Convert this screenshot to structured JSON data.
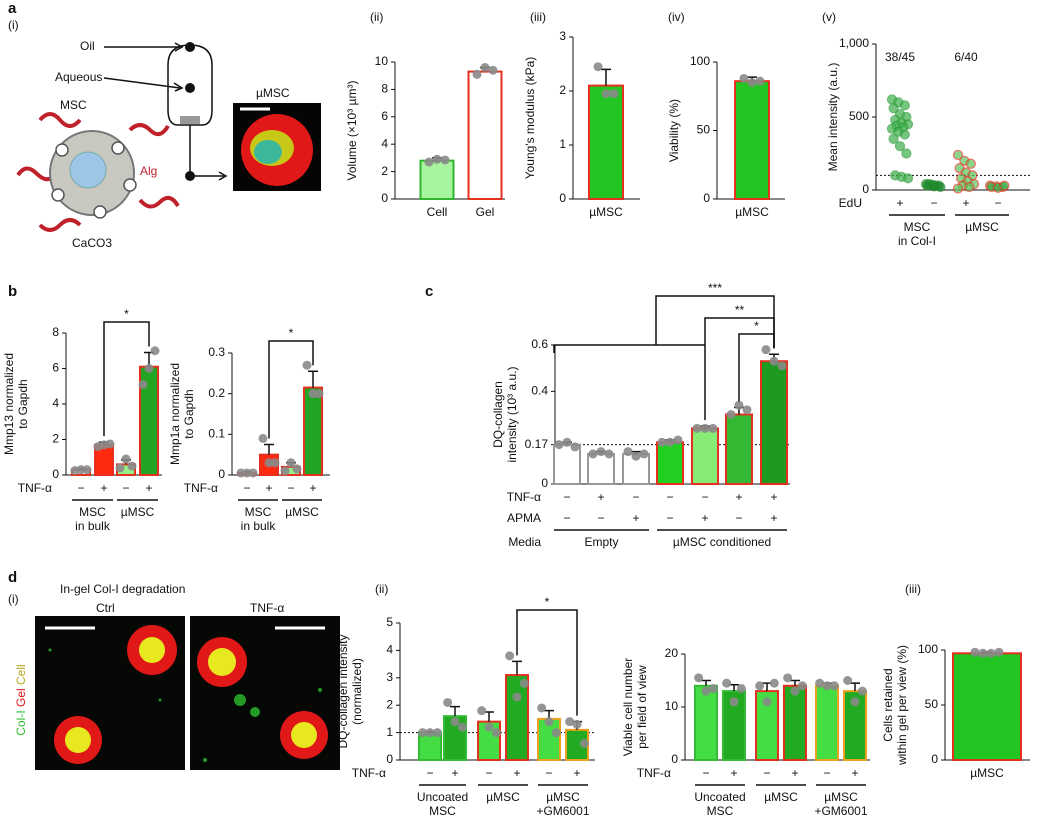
{
  "figure_text": {
    "panel_labels": [
      "a",
      "b",
      "c",
      "d"
    ],
    "a_i": {
      "label": "(i)",
      "oil": "Oil",
      "aqueous": "Aqueous",
      "msc": "MSC",
      "alg": "Alg",
      "caco3": "CaCO3",
      "umsc": "µMSC"
    },
    "d_i": {
      "label": "(i)",
      "title": "In-gel Col-I degradation",
      "ctrl": "Ctrl",
      "tnf": "TNF-α",
      "legend": [
        "Col-I",
        "Gel",
        "Cell"
      ]
    }
  },
  "chart_data": [
    {
      "type": "bar",
      "title": "(ii)",
      "ylabel": [
        "Volume (×10³ µm³)"
      ],
      "ylim": [
        0,
        10
      ],
      "yticks": [
        0,
        2,
        4,
        6,
        8,
        10
      ],
      "categories": [
        "Cell",
        "Gel"
      ],
      "values": [
        2.8,
        9.3
      ],
      "errors": [
        0.2,
        0.3
      ],
      "points": [
        [
          2.7,
          2.9,
          2.85
        ],
        [
          9.1,
          9.6,
          9.4
        ]
      ],
      "colors": [
        "#a8f5a0",
        "#ffffff"
      ],
      "edge_colors": [
        "#2fb52f",
        "#e53020"
      ]
    },
    {
      "type": "bar",
      "title": "(iii)",
      "ylabel": [
        "Young's modulus (kPa)"
      ],
      "ylim": [
        0,
        3
      ],
      "yticks": [
        0,
        1,
        2,
        3
      ],
      "categories": [
        "µMSC"
      ],
      "values": [
        2.1
      ],
      "errors": [
        0.3
      ],
      "points": [
        [
          2.45,
          1.95,
          1.95
        ]
      ],
      "colors": [
        "#22c522"
      ],
      "edge_colors": [
        "#e53020"
      ]
    },
    {
      "type": "bar",
      "title": "(iv)",
      "ylabel": [
        "Viability (%)"
      ],
      "ylim": [
        0,
        100
      ],
      "yticks": [
        0,
        50,
        100
      ],
      "categories": [
        "µMSC"
      ],
      "values": [
        86
      ],
      "errors": [
        3
      ],
      "points": [
        [
          88,
          85,
          86
        ]
      ],
      "colors": [
        "#22c522"
      ],
      "edge_colors": [
        "#e53020"
      ]
    },
    {
      "type": "strip",
      "title": "(v)",
      "ylabel": [
        "Mean intensity (a.u.)"
      ],
      "ylim": [
        0,
        1000
      ],
      "yticks": [
        0,
        500,
        {
          "value": 1000,
          "label": "1,000"
        }
      ],
      "series": [
        {
          "color": "#3cb04a",
          "edge_color": "#2e9a3a",
          "values": [
            620,
            600,
            580,
            560,
            520,
            500,
            480,
            460,
            450,
            440,
            430,
            420,
            400,
            380,
            350,
            300,
            250,
            100,
            90,
            80
          ]
        },
        {
          "color": "#1f8a2c",
          "edge_color": "#1f8a2c",
          "values": [
            40,
            35,
            30,
            30,
            25,
            20,
            40,
            30
          ]
        },
        {
          "color": "#5cc45c",
          "edge_color": "#e53020",
          "values": [
            240,
            200,
            180,
            150,
            120,
            100,
            80,
            60,
            40,
            30,
            20,
            10
          ]
        },
        {
          "color": "#3cb04a",
          "edge_color": "#e53020",
          "values": [
            30,
            25,
            20,
            20,
            15,
            30
          ]
        }
      ],
      "rows": [
        {
          "name": "EdU",
          "labels": [
            "+",
            "−",
            "+",
            "−"
          ]
        }
      ],
      "groups": [
        {
          "label": [
            "MSC",
            "in Col-I"
          ]
        },
        {
          "label": [
            "µMSC"
          ]
        }
      ],
      "annotations": [
        "38/45",
        "6/40"
      ],
      "reference_line": 100
    },
    {
      "type": "bar",
      "ylabel": [
        "Mmp13 normalized",
        "to Gapdh"
      ],
      "ylim": [
        0,
        8
      ],
      "yticks": [
        0,
        2,
        4,
        6,
        8
      ],
      "values": [
        0.3,
        1.7,
        0.6,
        6.1
      ],
      "errors": [
        0.05,
        0.15,
        0.25,
        0.8
      ],
      "points": [
        [
          0.25,
          0.3,
          0.3
        ],
        [
          1.6,
          1.7,
          1.75
        ],
        [
          0.4,
          0.9,
          0.5
        ],
        [
          5.1,
          6.0,
          7.0
        ]
      ],
      "colors": [
        "#ffffff",
        "#ff2a10",
        "#98ee88",
        "#22a522"
      ],
      "edge_colors": [
        "#e53020",
        "#e53020",
        "#e53020",
        "#e53020"
      ],
      "rows": [
        {
          "name": "TNF-α",
          "labels": [
            "−",
            "+",
            "−",
            "+"
          ]
        }
      ],
      "groups": [
        {
          "label": [
            "MSC",
            "in bulk"
          ]
        },
        {
          "label": [
            "µMSC"
          ]
        }
      ],
      "significance": [
        "*"
      ]
    },
    {
      "type": "bar",
      "ylabel": [
        "Mmp1a normalized",
        "to Gapdh"
      ],
      "ylim": [
        0,
        0.3
      ],
      "yticks": [
        0,
        0.1,
        0.2,
        0.3
      ],
      "values": [
        0.005,
        0.05,
        0.02,
        0.215
      ],
      "errors": [
        0.003,
        0.025,
        0.01,
        0.04
      ],
      "points": [
        [
          0.005,
          0.005,
          0.005
        ],
        [
          0.09,
          0.03,
          0.03
        ],
        [
          0.01,
          0.03,
          0.015
        ],
        [
          0.27,
          0.2,
          0.2
        ]
      ],
      "colors": [
        "#ffffff",
        "#ff2a10",
        "#98ee88",
        "#22a522"
      ],
      "edge_colors": [
        "#e53020",
        "#e53020",
        "#e53020",
        "#e53020"
      ],
      "rows": [
        {
          "name": "TNF-α",
          "labels": [
            "−",
            "+",
            "−",
            "+"
          ]
        }
      ],
      "groups": [
        {
          "label": [
            "MSC",
            "in bulk"
          ]
        },
        {
          "label": [
            "µMSC"
          ]
        }
      ],
      "significance": [
        "*"
      ]
    },
    {
      "type": "bar",
      "ylabel": [
        "DQ-collagen",
        "intensity (10³ a.u.)"
      ],
      "ylim": [
        0,
        0.6
      ],
      "yticks": [
        0,
        0.17,
        0.4,
        0.6
      ],
      "values": [
        0.17,
        0.13,
        0.13,
        0.18,
        0.24,
        0.3,
        0.53
      ],
      "errors": [
        0.01,
        0.01,
        0.01,
        0.01,
        0.01,
        0.03,
        0.03
      ],
      "points": [
        [
          0.17,
          0.18,
          0.16
        ],
        [
          0.13,
          0.14,
          0.13
        ],
        [
          0.14,
          0.12,
          0.13
        ],
        [
          0.18,
          0.18,
          0.19
        ],
        [
          0.24,
          0.24,
          0.24
        ],
        [
          0.3,
          0.34,
          0.32
        ],
        [
          0.58,
          0.53,
          0.51
        ]
      ],
      "colors": [
        "#ffffff",
        "#ffffff",
        "#ffffff",
        "#22d022",
        "#86ec76",
        "#33b833",
        "#1e9a1e"
      ],
      "edge_colors": [
        "#999999",
        "#999999",
        "#999999",
        "#e53020",
        "#e53020",
        "#e53020",
        "#e53020"
      ],
      "rows": [
        {
          "name": "TNF-α",
          "labels": [
            "−",
            "+",
            "−",
            "−",
            "−",
            "+",
            "+"
          ]
        },
        {
          "name": "APMA",
          "labels": [
            "−",
            "−",
            "+",
            "−",
            "+",
            "−",
            "+"
          ]
        }
      ],
      "group_row": "Media",
      "groups": [
        {
          "label": [
            "Empty"
          ]
        },
        {
          "label": [
            "µMSC conditioned"
          ]
        }
      ],
      "significance": [
        "***",
        "**",
        "*"
      ],
      "reference_line": 0.17
    },
    {
      "type": "bar",
      "title": "(ii)",
      "ylabel": [
        "DQ-collagen intensity",
        "(normalized)"
      ],
      "ylim": [
        0,
        5
      ],
      "yticks": [
        0,
        1,
        2,
        3,
        4,
        5
      ],
      "values": [
        1.0,
        1.6,
        1.4,
        3.1,
        1.5,
        1.1
      ],
      "errors": [
        0.02,
        0.35,
        0.35,
        0.5,
        0.3,
        0.3
      ],
      "points": [
        [
          1,
          1,
          1
        ],
        [
          2.1,
          1.4,
          1.2
        ],
        [
          1.8,
          1.2,
          1.0
        ],
        [
          3.8,
          2.3,
          2.8
        ],
        [
          1.9,
          1.4,
          1.0
        ],
        [
          1.4,
          1.3,
          0.6
        ]
      ],
      "colors": [
        "#44dd44",
        "#22aa22",
        "#44dd44",
        "#22aa22",
        "#44dd44",
        "#22aa22"
      ],
      "edge_colors": [
        "#33bb33",
        "#33bb33",
        "#e53020",
        "#e53020",
        "#f0a020",
        "#f0a020"
      ],
      "reference_line": 1,
      "rows": [
        {
          "name": "TNF-α",
          "labels": [
            "−",
            "+",
            "−",
            "+",
            "−",
            "+"
          ]
        }
      ],
      "groups": [
        {
          "label": [
            "Uncoated",
            "MSC"
          ]
        },
        {
          "label": [
            "µMSC"
          ]
        },
        {
          "label": [
            "µMSC",
            "+GM6001"
          ]
        }
      ],
      "significance": [
        "*"
      ]
    },
    {
      "type": "bar",
      "ylabel": [
        "Viable cell number",
        "per field of view"
      ],
      "ylim": [
        0,
        20
      ],
      "yticks": [
        0,
        10,
        20
      ],
      "values": [
        14,
        13,
        13,
        14,
        14,
        13
      ],
      "errors": [
        1,
        1.2,
        1.5,
        1,
        0.5,
        1.5
      ],
      "points": [
        [
          15.5,
          13,
          13.5
        ],
        [
          14.5,
          11,
          13.5
        ],
        [
          14,
          11,
          14.5
        ],
        [
          15.5,
          13,
          14
        ],
        [
          14.5,
          14,
          14
        ],
        [
          15,
          11,
          13
        ]
      ],
      "colors": [
        "#44dd44",
        "#22aa22",
        "#44dd44",
        "#22aa22",
        "#44dd44",
        "#22aa22"
      ],
      "edge_colors": [
        "#33bb33",
        "#33bb33",
        "#e53020",
        "#e53020",
        "#f0a020",
        "#f0a020"
      ],
      "rows": [
        {
          "name": "TNF-α",
          "labels": [
            "−",
            "+",
            "−",
            "+",
            "−",
            "+"
          ]
        }
      ],
      "groups": [
        {
          "label": [
            "Uncoated",
            "MSC"
          ]
        },
        {
          "label": [
            "µMSC"
          ]
        },
        {
          "label": [
            "µMSC",
            "+GM6001"
          ]
        }
      ]
    },
    {
      "type": "bar",
      "title": "(iii)",
      "ylabel": [
        "Cells retained",
        "within gel per view (%)"
      ],
      "ylim": [
        0,
        100
      ],
      "yticks": [
        0,
        50,
        100
      ],
      "categories": [
        "µMSC"
      ],
      "values": [
        97
      ],
      "errors": [
        1
      ],
      "points": [
        [
          98,
          97,
          97,
          98
        ]
      ],
      "colors": [
        "#22c522"
      ],
      "edge_colors": [
        "#e53020"
      ]
    }
  ]
}
